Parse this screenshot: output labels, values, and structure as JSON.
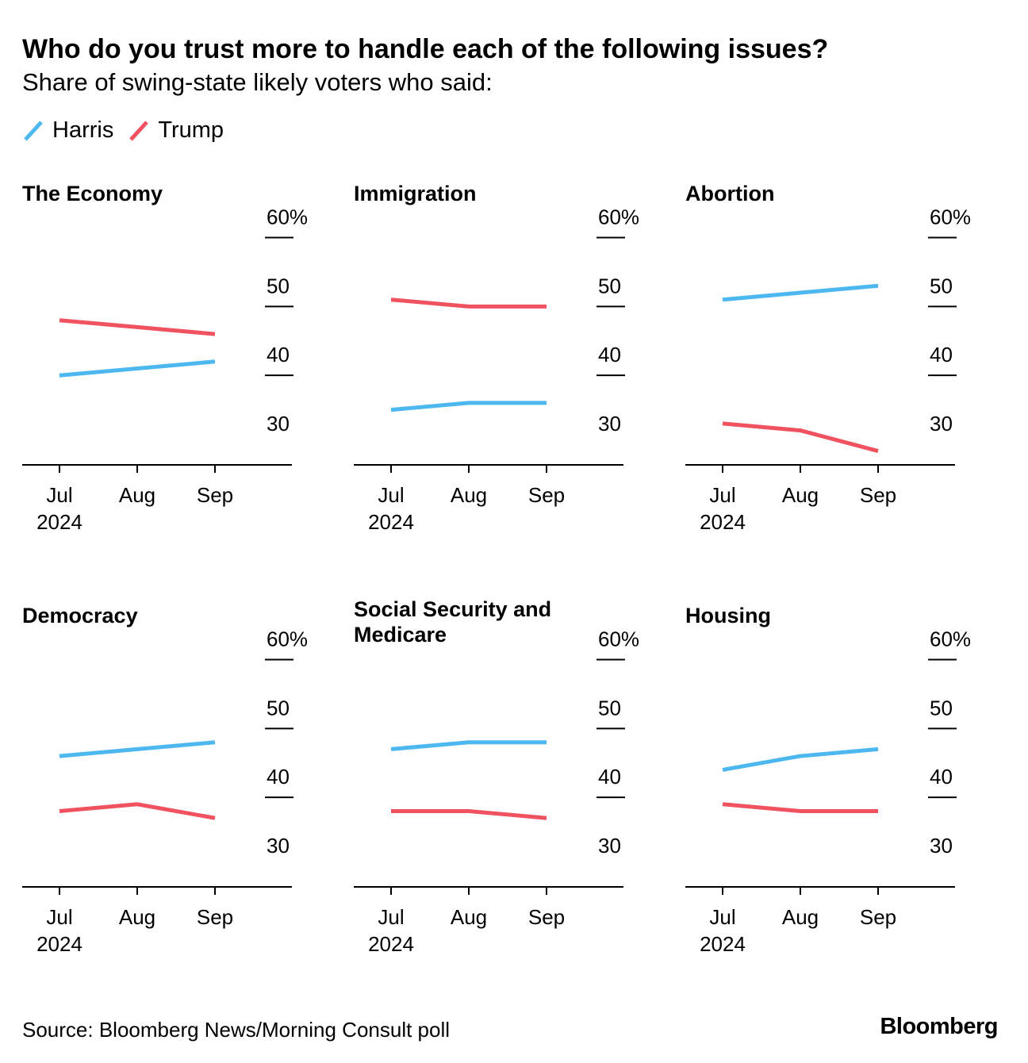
{
  "header": {
    "title": "Who do you trust more to handle each of the following issues?",
    "subtitle": "Share of swing-state likely voters who said:"
  },
  "legend": [
    {
      "label": "Harris",
      "color": "#4db8f0"
    },
    {
      "label": "Trump",
      "color": "#f0525f"
    }
  ],
  "footer": {
    "source": "Source: Bloomberg News/Morning Consult poll",
    "logo": "Bloomberg"
  },
  "chart_data": [
    {
      "type": "line",
      "title": "The Economy",
      "categories": [
        "Jul",
        "Aug",
        "Sep"
      ],
      "year_label": "2024",
      "y_ticks": [
        "30",
        "40",
        "50",
        "60%"
      ],
      "ylim": [
        27,
        60
      ],
      "series": [
        {
          "name": "Harris",
          "values": [
            40,
            41,
            42
          ]
        },
        {
          "name": "Trump",
          "values": [
            48,
            47,
            46
          ]
        }
      ]
    },
    {
      "type": "line",
      "title": "Immigration",
      "categories": [
        "Jul",
        "Aug",
        "Sep"
      ],
      "year_label": "2024",
      "y_ticks": [
        "30",
        "40",
        "50",
        "60%"
      ],
      "ylim": [
        27,
        60
      ],
      "series": [
        {
          "name": "Harris",
          "values": [
            35,
            36,
            36
          ]
        },
        {
          "name": "Trump",
          "values": [
            51,
            50,
            50
          ]
        }
      ]
    },
    {
      "type": "line",
      "title": "Abortion",
      "categories": [
        "Jul",
        "Aug",
        "Sep"
      ],
      "year_label": "2024",
      "y_ticks": [
        "30",
        "40",
        "50",
        "60%"
      ],
      "ylim": [
        27,
        60
      ],
      "series": [
        {
          "name": "Harris",
          "values": [
            51,
            52,
            53
          ]
        },
        {
          "name": "Trump",
          "values": [
            33,
            32,
            29
          ]
        }
      ]
    },
    {
      "type": "line",
      "title": "Democracy",
      "categories": [
        "Jul",
        "Aug",
        "Sep"
      ],
      "year_label": "2024",
      "y_ticks": [
        "30",
        "40",
        "50",
        "60%"
      ],
      "ylim": [
        27,
        60
      ],
      "series": [
        {
          "name": "Harris",
          "values": [
            46,
            47,
            48
          ]
        },
        {
          "name": "Trump",
          "values": [
            38,
            39,
            37
          ]
        }
      ]
    },
    {
      "type": "line",
      "title": "Social Security and Medicare",
      "categories": [
        "Jul",
        "Aug",
        "Sep"
      ],
      "year_label": "2024",
      "y_ticks": [
        "30",
        "40",
        "50",
        "60%"
      ],
      "ylim": [
        27,
        60
      ],
      "series": [
        {
          "name": "Harris",
          "values": [
            47,
            48,
            48
          ]
        },
        {
          "name": "Trump",
          "values": [
            38,
            38,
            37
          ]
        }
      ]
    },
    {
      "type": "line",
      "title": "Housing",
      "categories": [
        "Jul",
        "Aug",
        "Sep"
      ],
      "year_label": "2024",
      "y_ticks": [
        "30",
        "40",
        "50",
        "60%"
      ],
      "ylim": [
        27,
        60
      ],
      "series": [
        {
          "name": "Harris",
          "values": [
            44,
            46,
            47
          ]
        },
        {
          "name": "Trump",
          "values": [
            39,
            38,
            38
          ]
        }
      ]
    }
  ]
}
